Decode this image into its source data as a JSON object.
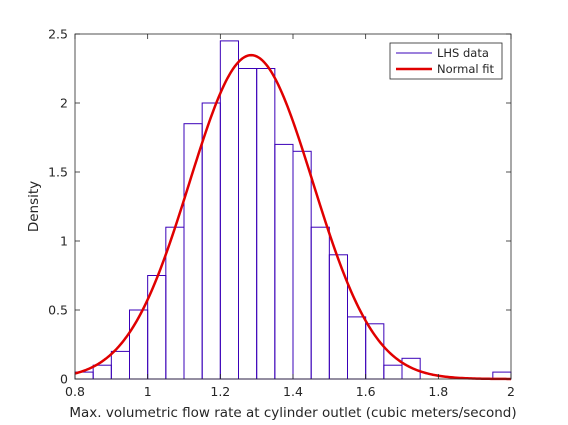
{
  "chart_data": {
    "type": "bar",
    "title": "",
    "xlabel": "Max. volumetric flow rate at cylinder outlet (cubic meters/second)",
    "ylabel": "Density",
    "xlim": [
      0.8,
      2.0
    ],
    "ylim": [
      0,
      2.5
    ],
    "xticks": [
      "0.8",
      "1",
      "1.2",
      "1.4",
      "1.6",
      "1.8",
      "2"
    ],
    "yticks": [
      "0",
      "0.5",
      "1",
      "1.5",
      "2",
      "2.5"
    ],
    "grid": false,
    "legend_position": "top-right",
    "bin_width": 0.05,
    "series": [
      {
        "name": "LHS data",
        "kind": "histogram",
        "color": "#3a00b8",
        "bin_starts": [
          0.8,
          0.85,
          0.9,
          0.95,
          1.0,
          1.05,
          1.1,
          1.15,
          1.2,
          1.25,
          1.3,
          1.35,
          1.4,
          1.45,
          1.5,
          1.55,
          1.6,
          1.65,
          1.7,
          1.75,
          1.8,
          1.85,
          1.9,
          1.95
        ],
        "values": [
          0.05,
          0.1,
          0.2,
          0.5,
          0.75,
          1.1,
          1.85,
          2.0,
          2.45,
          2.25,
          2.25,
          1.7,
          1.65,
          1.1,
          0.9,
          0.45,
          0.4,
          0.1,
          0.15,
          0.0,
          0.0,
          0.0,
          0.0,
          0.05
        ]
      },
      {
        "name": "Normal fit",
        "kind": "line",
        "color": "#e00000",
        "mean": 1.285,
        "std": 0.17
      }
    ]
  }
}
